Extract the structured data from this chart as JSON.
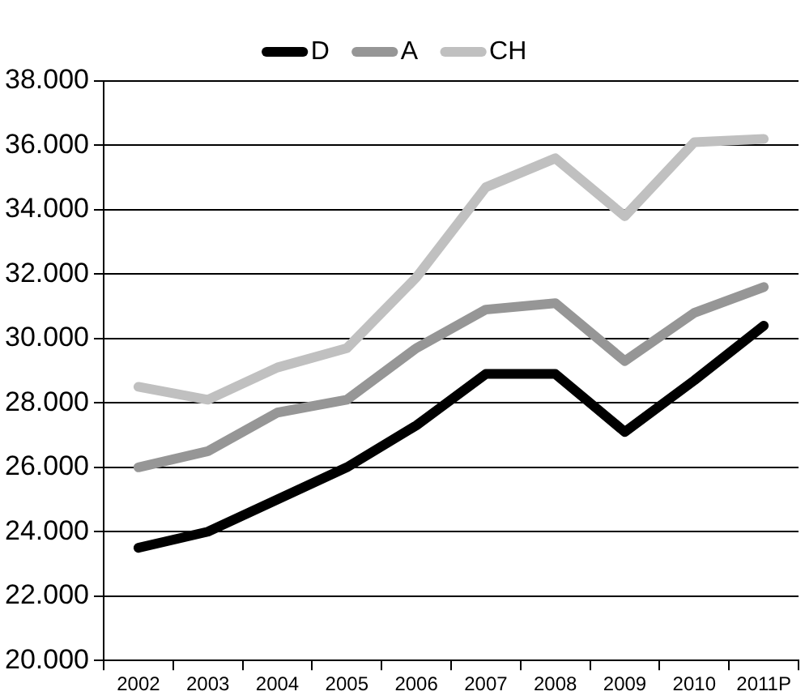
{
  "chart_data": {
    "type": "line",
    "categories": [
      "2002",
      "2003",
      "2004",
      "2005",
      "2006",
      "2007",
      "2008",
      "2009",
      "2010",
      "2011P"
    ],
    "series": [
      {
        "name": "D",
        "color": "#000000",
        "values": [
          23500,
          24000,
          25000,
          26000,
          27300,
          28900,
          28900,
          27100,
          28700,
          30400
        ]
      },
      {
        "name": "A",
        "color": "#969696",
        "values": [
          26000,
          26500,
          27700,
          28100,
          29700,
          30900,
          31100,
          29300,
          30800,
          31600
        ]
      },
      {
        "name": "CH",
        "color": "#c0c0c0",
        "values": [
          28500,
          28100,
          29100,
          29700,
          31900,
          34700,
          35600,
          33800,
          36100,
          36200
        ]
      }
    ],
    "ylim": [
      20000,
      38000
    ],
    "yticks": [
      {
        "value": 20000,
        "label": "20.000"
      },
      {
        "value": 22000,
        "label": "22.000"
      },
      {
        "value": 24000,
        "label": "24.000"
      },
      {
        "value": 26000,
        "label": "26.000"
      },
      {
        "value": 28000,
        "label": "28.000"
      },
      {
        "value": 30000,
        "label": "30.000"
      },
      {
        "value": 32000,
        "label": "32.000"
      },
      {
        "value": 34000,
        "label": "34.000"
      },
      {
        "value": 36000,
        "label": "36.000"
      },
      {
        "value": 38000,
        "label": "38.000"
      }
    ],
    "grid": "y",
    "legend": "top",
    "marker": "none",
    "line_style": "solid"
  }
}
